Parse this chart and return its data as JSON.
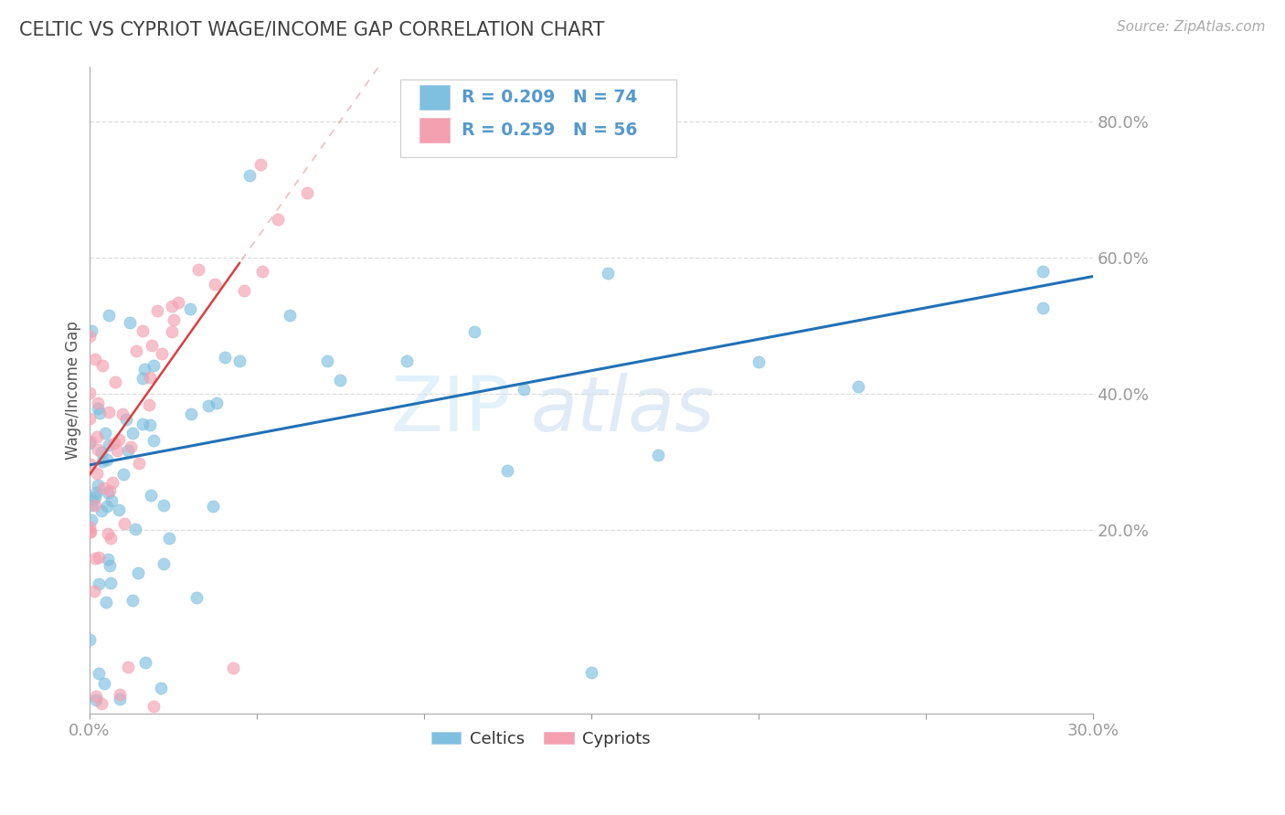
{
  "title": "CELTIC VS CYPRIOT WAGE/INCOME GAP CORRELATION CHART",
  "source": "Source: ZipAtlas.com",
  "ylabel": "Wage/Income Gap",
  "xlim": [
    0.0,
    0.3
  ],
  "ylim": [
    -0.07,
    0.88
  ],
  "yticks": [
    0.2,
    0.4,
    0.6,
    0.8
  ],
  "ytick_labels": [
    "20.0%",
    "40.0%",
    "60.0%",
    "80.0%"
  ],
  "xticks": [
    0.0,
    0.05,
    0.1,
    0.15,
    0.2,
    0.25,
    0.3
  ],
  "celtics_R": 0.209,
  "celtics_N": 74,
  "cypriots_R": 0.259,
  "cypriots_N": 56,
  "celtics_color": "#7fbfdf",
  "cypriots_color": "#f4a0b0",
  "celtics_line_color": "#2171b5",
  "cypriots_line_color": "#d94040",
  "watermark_text": "ZIPatlas",
  "background_color": "#ffffff",
  "title_color": "#404040",
  "axis_label_color": "#5599cc",
  "grid_color": "#dddddd",
  "legend_text_blue": "R = 0.209   N = 74",
  "legend_text_pink": "R = 0.259   N = 56",
  "celtics_trend_x0": 0.0,
  "celtics_trend_y0": 0.295,
  "celtics_trend_x1": 0.3,
  "celtics_trend_y1": 0.572,
  "cypriots_trend_x0": 0.0,
  "cypriots_trend_y0": 0.28,
  "cypriots_trend_x1": 0.075,
  "cypriots_trend_y1": 0.8
}
